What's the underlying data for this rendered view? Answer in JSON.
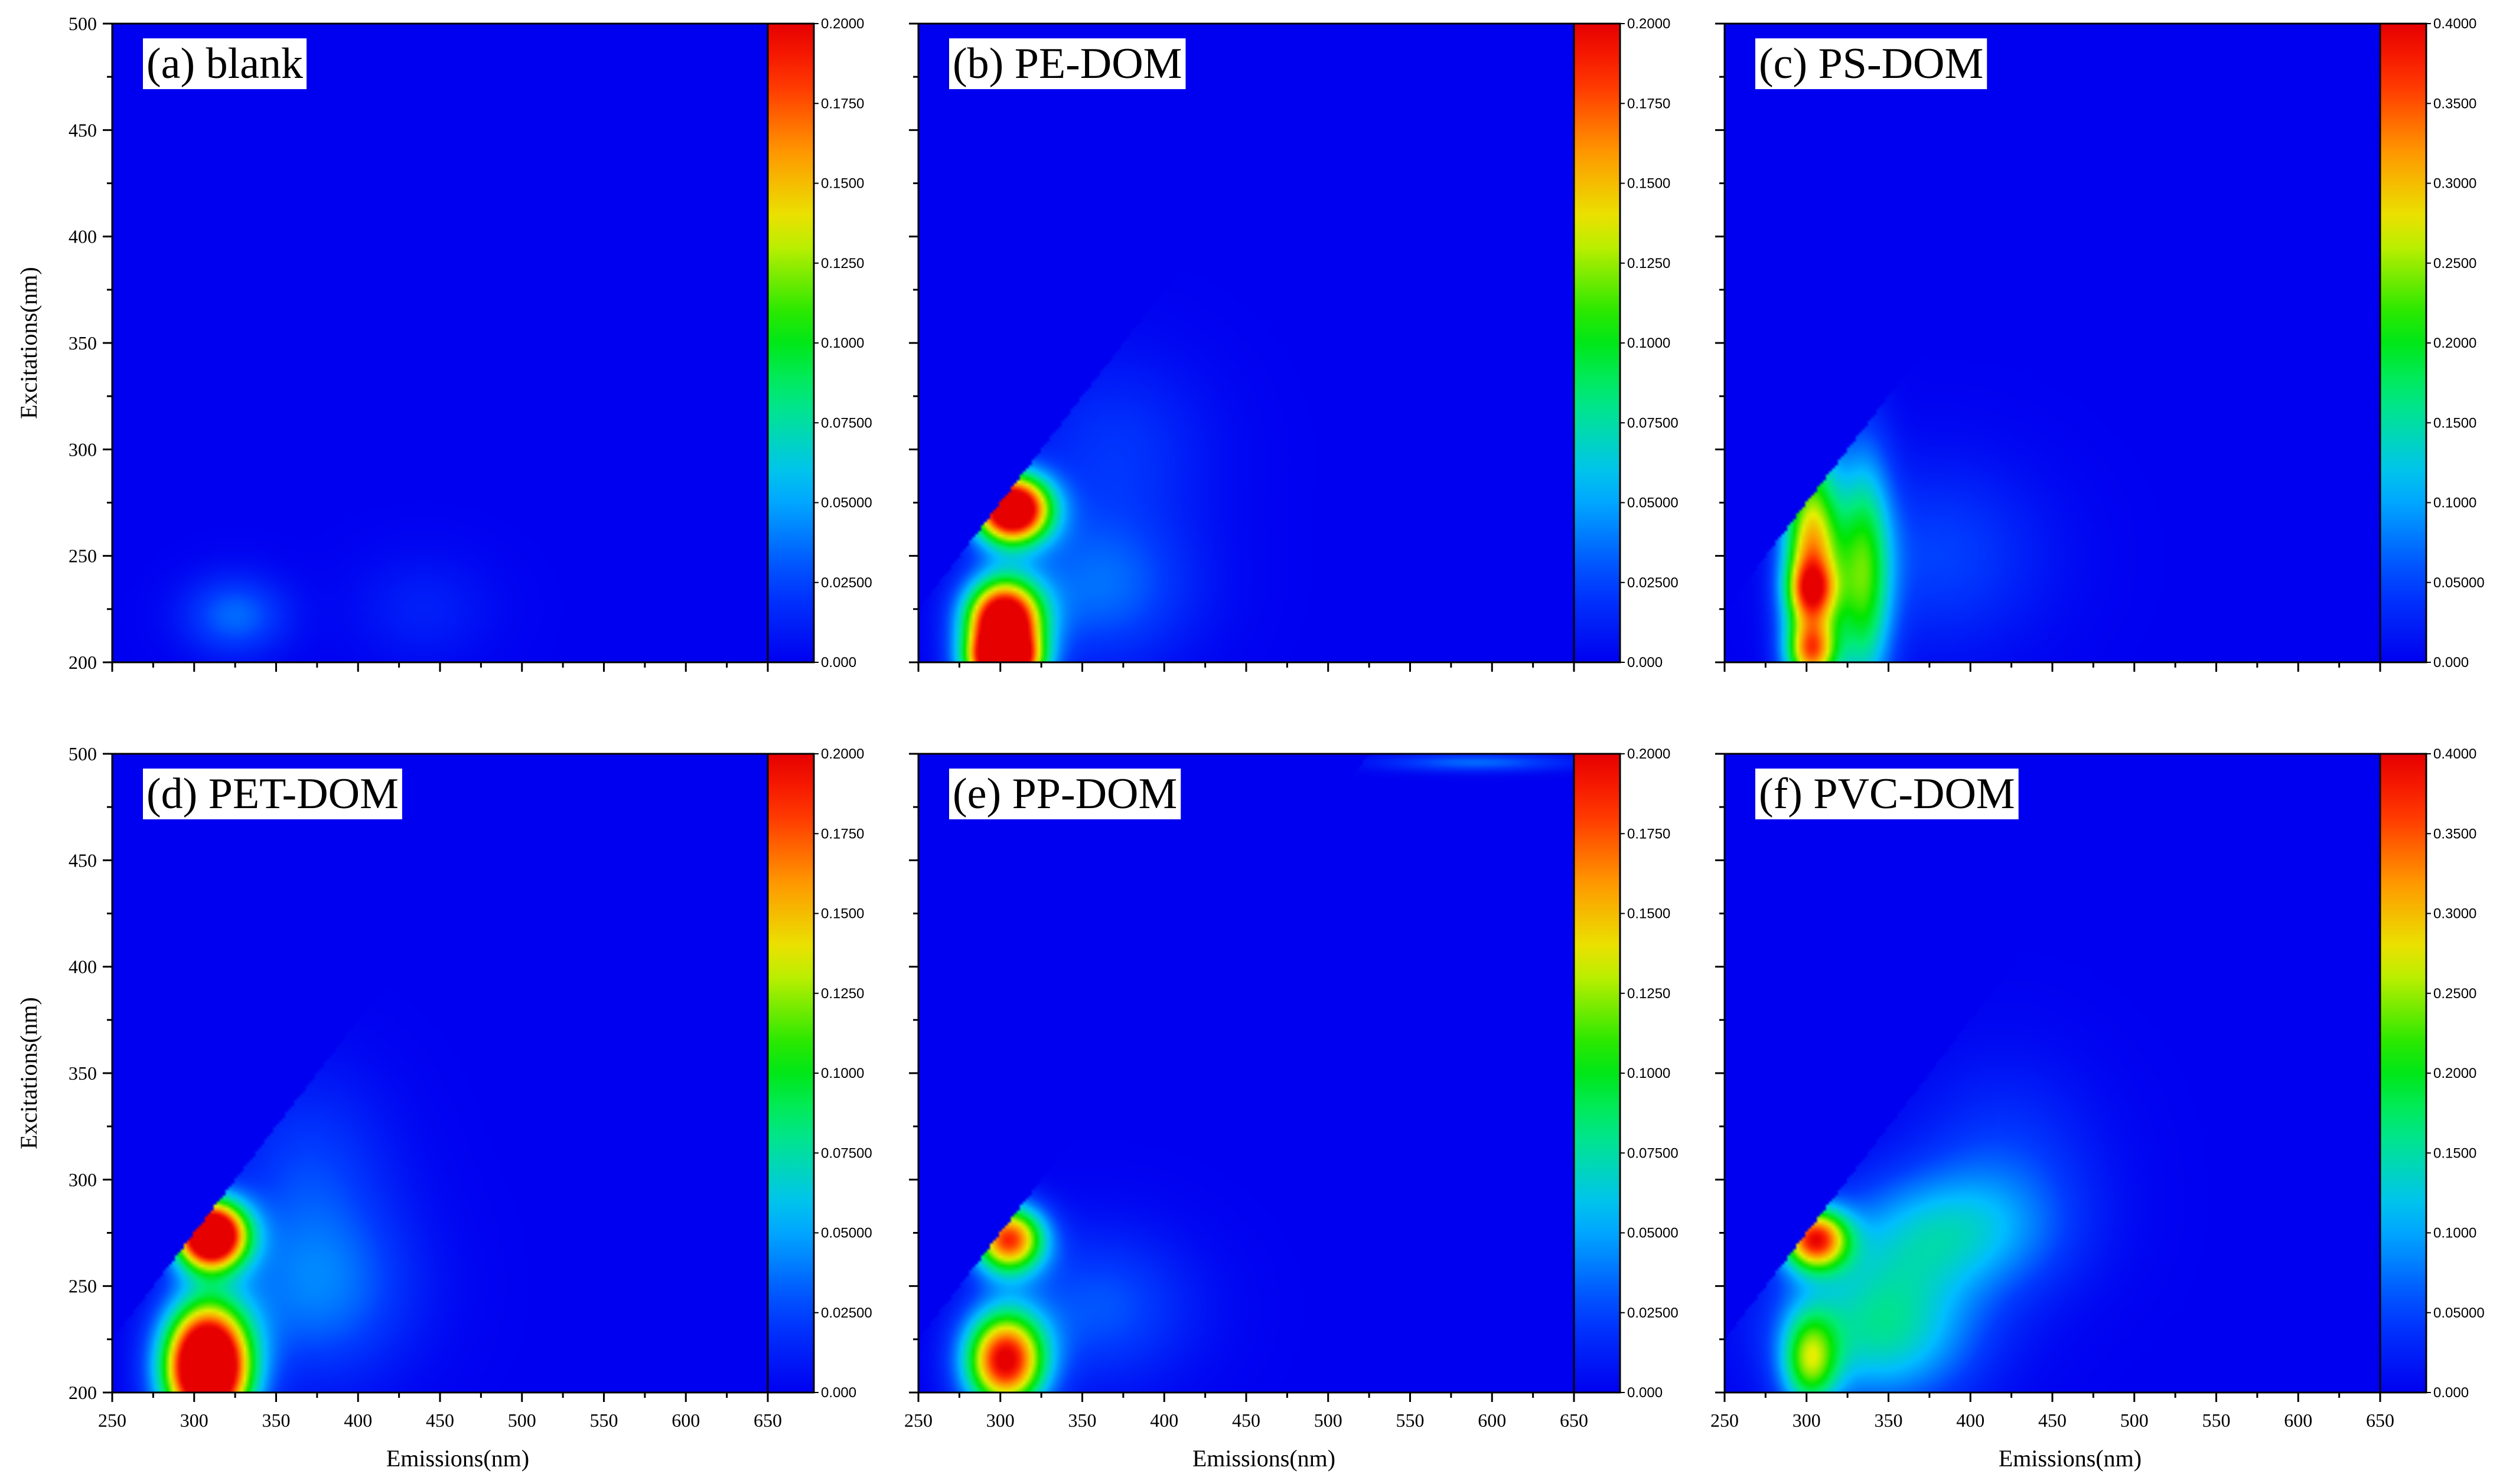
{
  "chart_data": [
    {
      "type": "heatmap",
      "title": "(a) blank",
      "xlabel": "",
      "ylabel": "Excitations(nm)",
      "xlim": [
        250,
        650
      ],
      "ylim": [
        200,
        500
      ],
      "x_ticks": [],
      "y_ticks": [
        "200",
        "250",
        "300",
        "350",
        "400",
        "450",
        "500"
      ],
      "colorbar_max": 0.2,
      "colorbar_ticks": [
        "0.000",
        "0.02500",
        "0.05000",
        "0.07500",
        "0.1000",
        "0.1250",
        "0.1500",
        "0.1750",
        "0.2000"
      ],
      "peaks": [
        {
          "em": 325,
          "ex": 222,
          "intensity": 0.035,
          "sx": 22,
          "sy": 13
        },
        {
          "em": 440,
          "ex": 225,
          "intensity": 0.012,
          "sx": 30,
          "sy": 18
        }
      ]
    },
    {
      "type": "heatmap",
      "title": "(b) PE-DOM",
      "xlabel": "",
      "ylabel": "",
      "xlim": [
        250,
        650
      ],
      "ylim": [
        200,
        500
      ],
      "x_ticks": [],
      "y_ticks": [],
      "colorbar_max": 0.2,
      "colorbar_ticks": [
        "0.000",
        "0.02500",
        "0.05000",
        "0.07500",
        "0.1000",
        "0.1250",
        "0.1500",
        "0.1750",
        "0.2000"
      ],
      "peaks": [
        {
          "em": 307,
          "ex": 272,
          "intensity": 0.26,
          "sx": 16,
          "sy": 11
        },
        {
          "em": 302,
          "ex": 218,
          "intensity": 0.26,
          "sx": 16,
          "sy": 14
        },
        {
          "em": 302,
          "ex": 200,
          "intensity": 0.2,
          "sx": 15,
          "sy": 8
        },
        {
          "em": 360,
          "ex": 235,
          "intensity": 0.035,
          "sx": 40,
          "sy": 25
        },
        {
          "em": 370,
          "ex": 300,
          "intensity": 0.02,
          "sx": 40,
          "sy": 30
        }
      ]
    },
    {
      "type": "heatmap",
      "title": "(c) PS-DOM",
      "xlabel": "",
      "ylabel": "",
      "xlim": [
        250,
        650
      ],
      "ylim": [
        200,
        500
      ],
      "x_ticks": [],
      "y_ticks": [],
      "colorbar_max": 0.4,
      "colorbar_ticks": [
        "0.000",
        "0.05000",
        "0.1000",
        "0.1500",
        "0.2000",
        "0.2500",
        "0.3000",
        "0.3500",
        "0.4000"
      ],
      "peaks": [
        {
          "em": 303,
          "ex": 240,
          "intensity": 0.33,
          "sx": 12,
          "sy": 42
        },
        {
          "em": 303,
          "ex": 235,
          "intensity": 0.1,
          "sx": 10,
          "sy": 8
        },
        {
          "em": 303,
          "ex": 205,
          "intensity": 0.12,
          "sx": 10,
          "sy": 8
        },
        {
          "em": 335,
          "ex": 240,
          "intensity": 0.2,
          "sx": 12,
          "sy": 40
        },
        {
          "em": 380,
          "ex": 250,
          "intensity": 0.05,
          "sx": 45,
          "sy": 30
        }
      ]
    },
    {
      "type": "heatmap",
      "title": "(d) PET-DOM",
      "xlabel": "Emissions(nm)",
      "ylabel": "Excitations(nm)",
      "xlim": [
        250,
        650
      ],
      "ylim": [
        200,
        500
      ],
      "x_ticks": [
        "250",
        "300",
        "350",
        "400",
        "450",
        "500",
        "550",
        "600",
        "650"
      ],
      "y_ticks": [
        "200",
        "250",
        "300",
        "350",
        "400",
        "450",
        "500"
      ],
      "colorbar_max": 0.2,
      "colorbar_ticks": [
        "0.000",
        "0.02500",
        "0.05000",
        "0.07500",
        "0.1000",
        "0.1250",
        "0.1500",
        "0.1750",
        "0.2000"
      ],
      "peaks": [
        {
          "em": 310,
          "ex": 274,
          "intensity": 0.28,
          "sx": 15,
          "sy": 11
        },
        {
          "em": 308,
          "ex": 212,
          "intensity": 0.3,
          "sx": 18,
          "sy": 20
        },
        {
          "em": 375,
          "ex": 250,
          "intensity": 0.04,
          "sx": 40,
          "sy": 30
        },
        {
          "em": 370,
          "ex": 310,
          "intensity": 0.02,
          "sx": 35,
          "sy": 30
        }
      ]
    },
    {
      "type": "heatmap",
      "title": "(e) PP-DOM",
      "xlabel": "Emissions(nm)",
      "ylabel": "",
      "xlim": [
        250,
        650
      ],
      "ylim": [
        200,
        500
      ],
      "x_ticks": [
        "250",
        "300",
        "350",
        "400",
        "450",
        "500",
        "550",
        "600",
        "650"
      ],
      "y_ticks": [],
      "colorbar_max": 0.2,
      "colorbar_ticks": [
        "0.000",
        "0.02500",
        "0.05000",
        "0.07500",
        "0.1000",
        "0.1250",
        "0.1500",
        "0.1750",
        "0.2000"
      ],
      "peaks": [
        {
          "em": 305,
          "ex": 272,
          "intensity": 0.18,
          "sx": 15,
          "sy": 11
        },
        {
          "em": 303,
          "ex": 215,
          "intensity": 0.2,
          "sx": 17,
          "sy": 16
        },
        {
          "em": 360,
          "ex": 240,
          "intensity": 0.03,
          "sx": 40,
          "sy": 25
        },
        {
          "em": 590,
          "ex": 496,
          "intensity": 0.035,
          "sx": 40,
          "sy": 3
        }
      ]
    },
    {
      "type": "heatmap",
      "title": "(f) PVC-DOM",
      "xlabel": "Emissions(nm)",
      "ylabel": "",
      "xlim": [
        250,
        650
      ],
      "ylim": [
        200,
        500
      ],
      "x_ticks": [
        "250",
        "300",
        "350",
        "400",
        "450",
        "500",
        "550",
        "600",
        "650"
      ],
      "y_ticks": [],
      "colorbar_max": 0.4,
      "colorbar_ticks": [
        "0.000",
        "0.05000",
        "0.1000",
        "0.1500",
        "0.2000",
        "0.2500",
        "0.3000",
        "0.3500",
        "0.4000"
      ],
      "peaks": [
        {
          "em": 305,
          "ex": 272,
          "intensity": 0.35,
          "sx": 14,
          "sy": 10
        },
        {
          "em": 302,
          "ex": 215,
          "intensity": 0.2,
          "sx": 12,
          "sy": 16
        },
        {
          "em": 345,
          "ex": 230,
          "intensity": 0.15,
          "sx": 40,
          "sy": 25
        },
        {
          "em": 380,
          "ex": 275,
          "intensity": 0.1,
          "sx": 45,
          "sy": 20
        },
        {
          "em": 420,
          "ex": 300,
          "intensity": 0.05,
          "sx": 40,
          "sy": 35
        }
      ]
    }
  ]
}
